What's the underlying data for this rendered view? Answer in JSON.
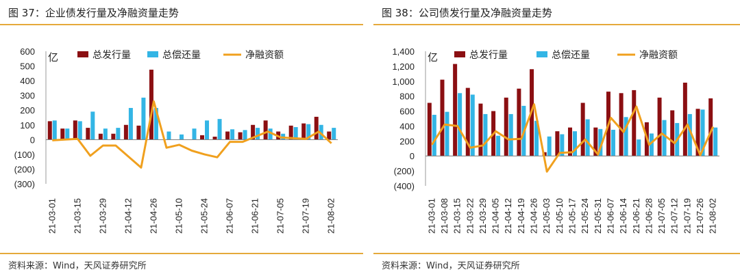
{
  "figures": [
    {
      "title": "图 37：企业债发行量及净融资量走势",
      "source": "资料来源：Wind，天风证券研究所"
    },
    {
      "title": "图 38：公司债发行量及净融资量走势",
      "source": "资料来源：Wind，天风证券研究所"
    }
  ],
  "colors": {
    "issuance": "#8b0f12",
    "repayment": "#33b5e5",
    "net": "#f0a01e",
    "rule": "#e5a93a"
  },
  "chart_data": [
    {
      "type": "bar",
      "unit_label": "亿",
      "ylim": [
        -300,
        600
      ],
      "yticks": [
        "600",
        "500",
        "400",
        "300",
        "200",
        "100",
        "0",
        "(100)",
        "(200)",
        "(300)"
      ],
      "ytick_values": [
        600,
        500,
        400,
        300,
        200,
        100,
        0,
        -100,
        -200,
        -300
      ],
      "categories": [
        "21-03-01",
        "21-03-08",
        "21-03-15",
        "21-03-22",
        "21-03-29",
        "21-04-05",
        "21-04-12",
        "21-04-19",
        "21-04-26",
        "21-05-03",
        "21-05-10",
        "21-05-17",
        "21-05-24",
        "21-05-31",
        "21-06-07",
        "21-06-14",
        "21-06-21",
        "21-06-28",
        "21-07-05",
        "21-07-12",
        "21-07-19",
        "21-07-26",
        "21-08-02"
      ],
      "xtick_labels": [
        "21-03-01",
        "21-03-15",
        "21-03-29",
        "21-04-12",
        "21-04-26",
        "21-05-10",
        "21-05-24",
        "21-06-07",
        "21-06-21",
        "21-07-05",
        "21-07-19",
        "21-08-02"
      ],
      "legend": [
        "总发行量",
        "总偿还量",
        "净融资额"
      ],
      "series": [
        {
          "name": "总发行量",
          "kind": "bar",
          "values": [
            125,
            75,
            130,
            80,
            40,
            40,
            100,
            95,
            475,
            0,
            0,
            0,
            30,
            20,
            55,
            50,
            100,
            130,
            55,
            95,
            110,
            155,
            55
          ]
        },
        {
          "name": "总偿还量",
          "kind": "bar",
          "values": [
            130,
            75,
            125,
            190,
            75,
            80,
            215,
            285,
            215,
            55,
            35,
            75,
            130,
            140,
            70,
            65,
            80,
            75,
            40,
            85,
            105,
            100,
            80
          ]
        },
        {
          "name": "净融资额",
          "kind": "line",
          "values": [
            -5,
            0,
            5,
            -110,
            -40,
            -40,
            -115,
            -190,
            260,
            -55,
            -35,
            -75,
            -100,
            -120,
            -15,
            -15,
            20,
            55,
            15,
            10,
            5,
            55,
            -25
          ]
        }
      ]
    },
    {
      "type": "bar",
      "unit_label": "亿",
      "ylim": [
        -400,
        1400
      ],
      "yticks": [
        "1,400",
        "1,200",
        "1,000",
        "800",
        "600",
        "400",
        "200",
        "0",
        "(200)",
        "(400)"
      ],
      "ytick_values": [
        1400,
        1200,
        1000,
        800,
        600,
        400,
        200,
        0,
        -200,
        -400
      ],
      "categories": [
        "21-03-01",
        "21-03-08",
        "21-03-15",
        "21-03-22",
        "21-03-29",
        "21-04-05",
        "21-04-12",
        "21-04-19",
        "21-04-26",
        "21-05-03",
        "21-05-10",
        "21-05-17",
        "21-05-24",
        "21-05-31",
        "21-06-07",
        "21-06-14",
        "21-06-21",
        "21-06-28",
        "21-07-05",
        "21-07-12",
        "21-07-19",
        "21-07-26",
        "21-08-02"
      ],
      "xtick_labels": [
        "21-03-01",
        "21-03-08",
        "21-03-15",
        "21-03-22",
        "21-03-29",
        "21-04-05",
        "21-04-12",
        "21-04-19",
        "21-04-26",
        "21-05-03",
        "21-05-10",
        "21-05-17",
        "21-05-24",
        "21-05-31",
        "21-06-07",
        "21-06-14",
        "21-06-21",
        "21-06-28",
        "21-07-05",
        "21-07-12",
        "21-07-19",
        "21-07-26",
        "21-08-02"
      ],
      "legend": [
        "总发行量",
        "总偿还量",
        "净融资额"
      ],
      "series": [
        {
          "name": "总发行量",
          "kind": "bar",
          "values": [
            710,
            1020,
            1230,
            910,
            700,
            600,
            780,
            900,
            1160,
            50,
            330,
            380,
            710,
            380,
            860,
            840,
            880,
            450,
            780,
            610,
            980,
            630,
            770
          ]
        },
        {
          "name": "总偿还量",
          "kind": "bar",
          "values": [
            550,
            590,
            840,
            820,
            560,
            270,
            560,
            670,
            470,
            260,
            290,
            330,
            490,
            360,
            350,
            520,
            220,
            300,
            480,
            440,
            560,
            620,
            380
          ]
        },
        {
          "name": "净融资额",
          "kind": "line",
          "values": [
            150,
            420,
            400,
            110,
            140,
            330,
            220,
            230,
            690,
            -210,
            40,
            50,
            220,
            20,
            510,
            320,
            660,
            150,
            300,
            170,
            420,
            10,
            390
          ]
        }
      ]
    }
  ]
}
